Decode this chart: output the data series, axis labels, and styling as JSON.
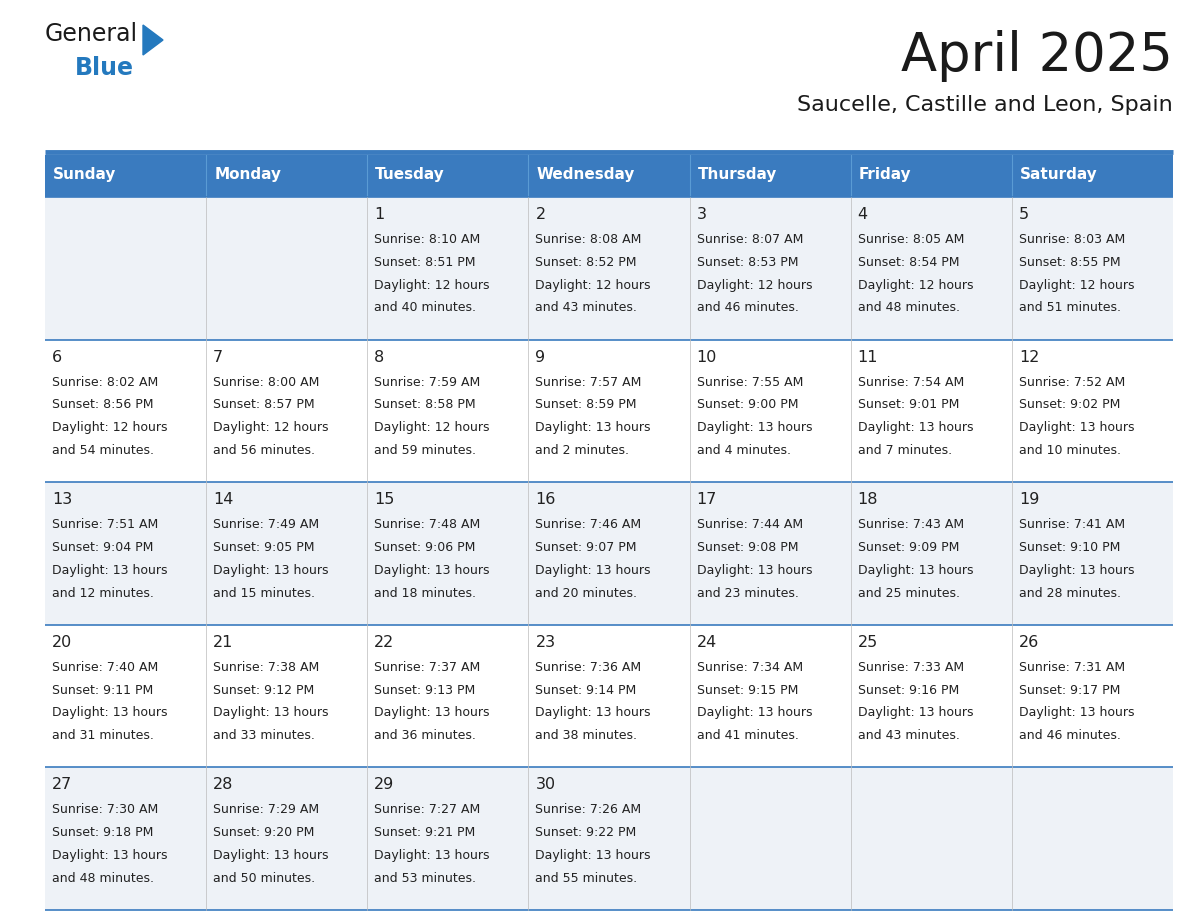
{
  "title": "April 2025",
  "subtitle": "Saucelle, Castille and Leon, Spain",
  "header_bg_color": "#3a7bbf",
  "header_text_color": "#ffffff",
  "row_bg_odd": "#eef2f7",
  "row_bg_even": "#ffffff",
  "day_headers": [
    "Sunday",
    "Monday",
    "Tuesday",
    "Wednesday",
    "Thursday",
    "Friday",
    "Saturday"
  ],
  "title_color": "#1a1a1a",
  "subtitle_color": "#1a1a1a",
  "text_color": "#222222",
  "line_color": "#3a7bbf",
  "logo_general_color": "#1a1a1a",
  "logo_blue_color": "#2479be",
  "fig_width": 11.88,
  "fig_height": 9.18,
  "weeks": [
    [
      {
        "day": null,
        "sunrise": null,
        "sunset": null,
        "daylight": null
      },
      {
        "day": null,
        "sunrise": null,
        "sunset": null,
        "daylight": null
      },
      {
        "day": 1,
        "sunrise": "8:10 AM",
        "sunset": "8:51 PM",
        "daylight_h": "12 hours",
        "daylight_m": "and 40 minutes."
      },
      {
        "day": 2,
        "sunrise": "8:08 AM",
        "sunset": "8:52 PM",
        "daylight_h": "12 hours",
        "daylight_m": "and 43 minutes."
      },
      {
        "day": 3,
        "sunrise": "8:07 AM",
        "sunset": "8:53 PM",
        "daylight_h": "12 hours",
        "daylight_m": "and 46 minutes."
      },
      {
        "day": 4,
        "sunrise": "8:05 AM",
        "sunset": "8:54 PM",
        "daylight_h": "12 hours",
        "daylight_m": "and 48 minutes."
      },
      {
        "day": 5,
        "sunrise": "8:03 AM",
        "sunset": "8:55 PM",
        "daylight_h": "12 hours",
        "daylight_m": "and 51 minutes."
      }
    ],
    [
      {
        "day": 6,
        "sunrise": "8:02 AM",
        "sunset": "8:56 PM",
        "daylight_h": "12 hours",
        "daylight_m": "and 54 minutes."
      },
      {
        "day": 7,
        "sunrise": "8:00 AM",
        "sunset": "8:57 PM",
        "daylight_h": "12 hours",
        "daylight_m": "and 56 minutes."
      },
      {
        "day": 8,
        "sunrise": "7:59 AM",
        "sunset": "8:58 PM",
        "daylight_h": "12 hours",
        "daylight_m": "and 59 minutes."
      },
      {
        "day": 9,
        "sunrise": "7:57 AM",
        "sunset": "8:59 PM",
        "daylight_h": "13 hours",
        "daylight_m": "and 2 minutes."
      },
      {
        "day": 10,
        "sunrise": "7:55 AM",
        "sunset": "9:00 PM",
        "daylight_h": "13 hours",
        "daylight_m": "and 4 minutes."
      },
      {
        "day": 11,
        "sunrise": "7:54 AM",
        "sunset": "9:01 PM",
        "daylight_h": "13 hours",
        "daylight_m": "and 7 minutes."
      },
      {
        "day": 12,
        "sunrise": "7:52 AM",
        "sunset": "9:02 PM",
        "daylight_h": "13 hours",
        "daylight_m": "and 10 minutes."
      }
    ],
    [
      {
        "day": 13,
        "sunrise": "7:51 AM",
        "sunset": "9:04 PM",
        "daylight_h": "13 hours",
        "daylight_m": "and 12 minutes."
      },
      {
        "day": 14,
        "sunrise": "7:49 AM",
        "sunset": "9:05 PM",
        "daylight_h": "13 hours",
        "daylight_m": "and 15 minutes."
      },
      {
        "day": 15,
        "sunrise": "7:48 AM",
        "sunset": "9:06 PM",
        "daylight_h": "13 hours",
        "daylight_m": "and 18 minutes."
      },
      {
        "day": 16,
        "sunrise": "7:46 AM",
        "sunset": "9:07 PM",
        "daylight_h": "13 hours",
        "daylight_m": "and 20 minutes."
      },
      {
        "day": 17,
        "sunrise": "7:44 AM",
        "sunset": "9:08 PM",
        "daylight_h": "13 hours",
        "daylight_m": "and 23 minutes."
      },
      {
        "day": 18,
        "sunrise": "7:43 AM",
        "sunset": "9:09 PM",
        "daylight_h": "13 hours",
        "daylight_m": "and 25 minutes."
      },
      {
        "day": 19,
        "sunrise": "7:41 AM",
        "sunset": "9:10 PM",
        "daylight_h": "13 hours",
        "daylight_m": "and 28 minutes."
      }
    ],
    [
      {
        "day": 20,
        "sunrise": "7:40 AM",
        "sunset": "9:11 PM",
        "daylight_h": "13 hours",
        "daylight_m": "and 31 minutes."
      },
      {
        "day": 21,
        "sunrise": "7:38 AM",
        "sunset": "9:12 PM",
        "daylight_h": "13 hours",
        "daylight_m": "and 33 minutes."
      },
      {
        "day": 22,
        "sunrise": "7:37 AM",
        "sunset": "9:13 PM",
        "daylight_h": "13 hours",
        "daylight_m": "and 36 minutes."
      },
      {
        "day": 23,
        "sunrise": "7:36 AM",
        "sunset": "9:14 PM",
        "daylight_h": "13 hours",
        "daylight_m": "and 38 minutes."
      },
      {
        "day": 24,
        "sunrise": "7:34 AM",
        "sunset": "9:15 PM",
        "daylight_h": "13 hours",
        "daylight_m": "and 41 minutes."
      },
      {
        "day": 25,
        "sunrise": "7:33 AM",
        "sunset": "9:16 PM",
        "daylight_h": "13 hours",
        "daylight_m": "and 43 minutes."
      },
      {
        "day": 26,
        "sunrise": "7:31 AM",
        "sunset": "9:17 PM",
        "daylight_h": "13 hours",
        "daylight_m": "and 46 minutes."
      }
    ],
    [
      {
        "day": 27,
        "sunrise": "7:30 AM",
        "sunset": "9:18 PM",
        "daylight_h": "13 hours",
        "daylight_m": "and 48 minutes."
      },
      {
        "day": 28,
        "sunrise": "7:29 AM",
        "sunset": "9:20 PM",
        "daylight_h": "13 hours",
        "daylight_m": "and 50 minutes."
      },
      {
        "day": 29,
        "sunrise": "7:27 AM",
        "sunset": "9:21 PM",
        "daylight_h": "13 hours",
        "daylight_m": "and 53 minutes."
      },
      {
        "day": 30,
        "sunrise": "7:26 AM",
        "sunset": "9:22 PM",
        "daylight_h": "13 hours",
        "daylight_m": "and 55 minutes."
      },
      {
        "day": null,
        "sunrise": null,
        "sunset": null,
        "daylight_h": null,
        "daylight_m": null
      },
      {
        "day": null,
        "sunrise": null,
        "sunset": null,
        "daylight_h": null,
        "daylight_m": null
      },
      {
        "day": null,
        "sunrise": null,
        "sunset": null,
        "daylight_h": null,
        "daylight_m": null
      }
    ]
  ]
}
